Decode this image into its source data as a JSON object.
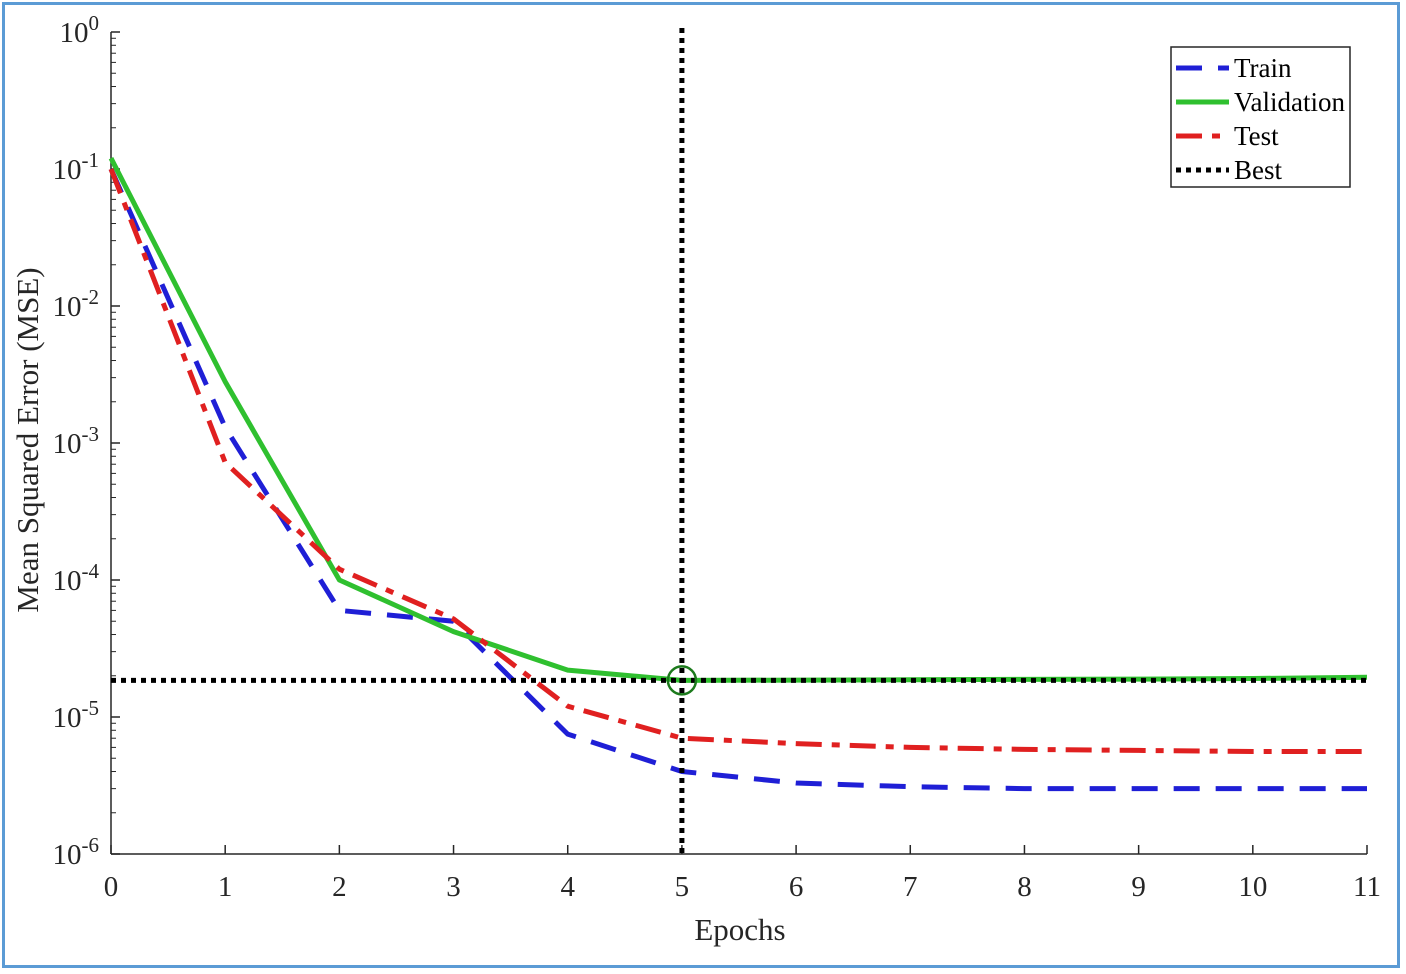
{
  "chart_data": {
    "type": "line",
    "xlabel": "Epochs",
    "ylabel": "Mean Squared Error  (MSE)",
    "xlim": [
      0,
      11
    ],
    "ylim": [
      1e-06,
      1
    ],
    "yscale": "log",
    "grid": false,
    "legend_position": "top-right",
    "x_ticks": [
      "0",
      "1",
      "2",
      "3",
      "4",
      "5",
      "6",
      "7",
      "8",
      "9",
      "10",
      "11"
    ],
    "y_ticks": [
      {
        "base": "10",
        "exp": "0"
      },
      {
        "base": "10",
        "exp": "-1"
      },
      {
        "base": "10",
        "exp": "-2"
      },
      {
        "base": "10",
        "exp": "-3"
      },
      {
        "base": "10",
        "exp": "-4"
      },
      {
        "base": "10",
        "exp": "-5"
      },
      {
        "base": "10",
        "exp": "-6"
      }
    ],
    "x": [
      0,
      1,
      2,
      3,
      4,
      5,
      6,
      7,
      8,
      9,
      10,
      11
    ],
    "series": [
      {
        "name": "Train",
        "color": "#1f1fd6",
        "style": "dashed",
        "values": [
          0.1,
          0.0013,
          6e-05,
          5e-05,
          7.5e-06,
          4e-06,
          3.3e-06,
          3.1e-06,
          3e-06,
          3e-06,
          3e-06,
          3e-06
        ]
      },
      {
        "name": "Validation",
        "color": "#2fc02f",
        "style": "solid",
        "values": [
          0.12,
          0.0028,
          0.0001,
          4.2e-05,
          2.2e-05,
          1.85e-05,
          1.86e-05,
          1.87e-05,
          1.88e-05,
          1.89e-05,
          1.91e-05,
          1.95e-05
        ]
      },
      {
        "name": "Test",
        "color": "#e02020",
        "style": "dashdot",
        "values": [
          0.1,
          0.00072,
          0.00012,
          5.2e-05,
          1.2e-05,
          7e-06,
          6.4e-06,
          6e-06,
          5.8e-06,
          5.7e-06,
          5.6e-06,
          5.6e-06
        ]
      },
      {
        "name": "Best",
        "color": "#000000",
        "style": "dotted"
      }
    ],
    "best": {
      "epoch": 5,
      "value": 1.85e-05
    }
  }
}
